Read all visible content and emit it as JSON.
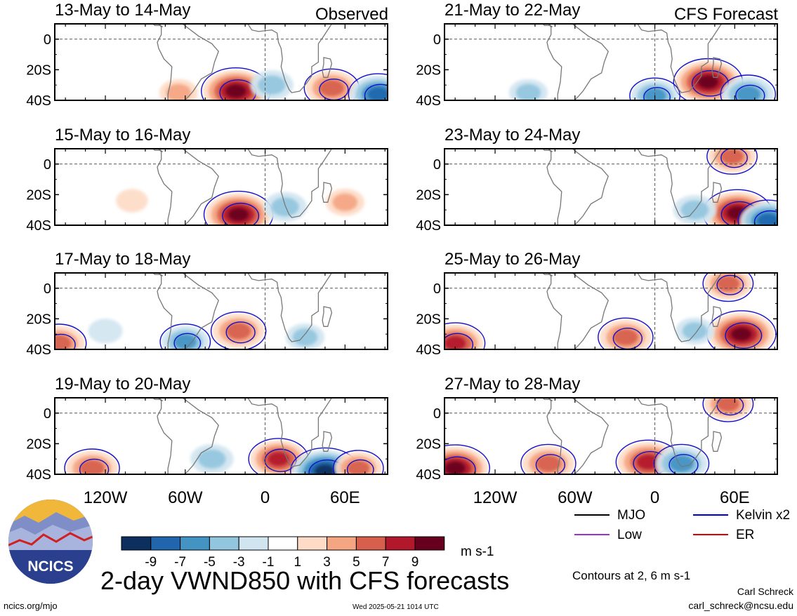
{
  "header": {
    "left_label": "Observed",
    "right_label": "CFS Forecast"
  },
  "chart_data": {
    "type": "heatmap",
    "title": "2-day VWND850 with CFS forecasts",
    "variable": "VWND850",
    "units": "m s-1",
    "x_tick_labels": [
      "120W",
      "60W",
      "0",
      "60E"
    ],
    "x_tick_values": [
      -120,
      -60,
      0,
      60
    ],
    "xlim": [
      -158,
      92
    ],
    "y_tick_labels": [
      "0",
      "20S",
      "40S"
    ],
    "y_tick_values": [
      0,
      -20,
      -40
    ],
    "ylim": [
      -40,
      10
    ],
    "panels": [
      {
        "column": "Observed",
        "title": "13-May to 14-May",
        "date_index": 0
      },
      {
        "column": "Observed",
        "title": "15-May to 16-May",
        "date_index": 1
      },
      {
        "column": "Observed",
        "title": "17-May to 18-May",
        "date_index": 2
      },
      {
        "column": "Observed",
        "title": "19-May to 20-May",
        "date_index": 3
      },
      {
        "column": "CFS Forecast",
        "title": "21-May to 22-May",
        "date_index": 4
      },
      {
        "column": "CFS Forecast",
        "title": "23-May to 24-May",
        "date_index": 5
      },
      {
        "column": "CFS Forecast",
        "title": "25-May to 26-May",
        "date_index": 6
      },
      {
        "column": "CFS Forecast",
        "title": "27-May to 28-May",
        "date_index": 7
      }
    ],
    "colorbar": {
      "tick_labels": [
        "-9",
        "-7",
        "-5",
        "-3",
        "-1",
        "1",
        "3",
        "5",
        "7",
        "9"
      ],
      "colors": [
        "#0d2f5e",
        "#2166ac",
        "#4393c3",
        "#92c5de",
        "#d1e5f0",
        "#ffffff",
        "#fddbc7",
        "#f4a582",
        "#d6604d",
        "#b2182b",
        "#67001f"
      ]
    },
    "features": [
      {
        "panel": 0,
        "lon": -22,
        "lat": -34,
        "value": 9
      },
      {
        "panel": 0,
        "lon": 50,
        "lat": -32,
        "value": 6
      },
      {
        "panel": 0,
        "lon": 5,
        "lat": -30,
        "value": -4
      },
      {
        "panel": 0,
        "lon": -65,
        "lat": -35,
        "value": 3
      },
      {
        "panel": 0,
        "lon": 85,
        "lat": -36,
        "value": -7
      },
      {
        "panel": 1,
        "lon": -20,
        "lat": -33,
        "value": 9
      },
      {
        "panel": 1,
        "lon": 15,
        "lat": -28,
        "value": -4
      },
      {
        "panel": 1,
        "lon": 60,
        "lat": -25,
        "value": 3
      },
      {
        "panel": 1,
        "lon": -100,
        "lat": -24,
        "value": 1.5
      },
      {
        "panel": 2,
        "lon": -20,
        "lat": -28,
        "value": 6
      },
      {
        "panel": 2,
        "lon": -60,
        "lat": -35,
        "value": -5
      },
      {
        "panel": 2,
        "lon": -155,
        "lat": -36,
        "value": 6
      },
      {
        "panel": 2,
        "lon": 30,
        "lat": -32,
        "value": -3
      },
      {
        "panel": 2,
        "lon": -120,
        "lat": -28,
        "value": -2
      },
      {
        "panel": 3,
        "lon": 10,
        "lat": -30,
        "value": 7
      },
      {
        "panel": 3,
        "lon": 45,
        "lat": -38,
        "value": -9
      },
      {
        "panel": 3,
        "lon": -130,
        "lat": -36,
        "value": 6
      },
      {
        "panel": 3,
        "lon": -40,
        "lat": -30,
        "value": -4
      },
      {
        "panel": 3,
        "lon": 70,
        "lat": -36,
        "value": 5
      },
      {
        "panel": 4,
        "lon": 40,
        "lat": -28,
        "value": 9
      },
      {
        "panel": 4,
        "lon": -95,
        "lat": -35,
        "value": -3
      },
      {
        "panel": 4,
        "lon": 0,
        "lat": -37,
        "value": -5
      },
      {
        "panel": 4,
        "lon": 70,
        "lat": -36,
        "value": -6
      },
      {
        "panel": 5,
        "lon": 62,
        "lat": -32,
        "value": 9
      },
      {
        "panel": 5,
        "lon": 58,
        "lat": 5,
        "value": 5
      },
      {
        "panel": 5,
        "lon": 30,
        "lat": -30,
        "value": -4
      },
      {
        "panel": 5,
        "lon": 85,
        "lat": -37,
        "value": -7
      },
      {
        "panel": 6,
        "lon": 65,
        "lat": -30,
        "value": 9
      },
      {
        "panel": 6,
        "lon": -22,
        "lat": -32,
        "value": 6
      },
      {
        "panel": 6,
        "lon": -150,
        "lat": -36,
        "value": 7
      },
      {
        "panel": 6,
        "lon": 55,
        "lat": 3,
        "value": 5
      },
      {
        "panel": 6,
        "lon": 30,
        "lat": -28,
        "value": -3
      },
      {
        "panel": 7,
        "lon": -5,
        "lat": -32,
        "value": 8
      },
      {
        "panel": 7,
        "lon": -150,
        "lat": -36,
        "value": 9
      },
      {
        "panel": 7,
        "lon": -80,
        "lat": -33,
        "value": 6
      },
      {
        "panel": 7,
        "lon": 20,
        "lat": -33,
        "value": -6
      },
      {
        "panel": 7,
        "lon": 55,
        "lat": 6,
        "value": 5
      }
    ]
  },
  "legend": {
    "entries": [
      {
        "label": "MJO",
        "color": "#000000"
      },
      {
        "label": "Kelvin x2",
        "color": "#0000cc"
      },
      {
        "label": "Low",
        "color": "#9933cc"
      },
      {
        "label": "ER",
        "color": "#dd0000"
      }
    ],
    "contour_note": "Contours at 2, 6 m s-1"
  },
  "footer": {
    "logo_text": "NCICS",
    "site": "ncics.org/mjo",
    "timestamp": "Wed 2025-05-21 1014 UTC",
    "author": "Carl Schreck",
    "email": "carl_schreck@ncsu.edu"
  }
}
